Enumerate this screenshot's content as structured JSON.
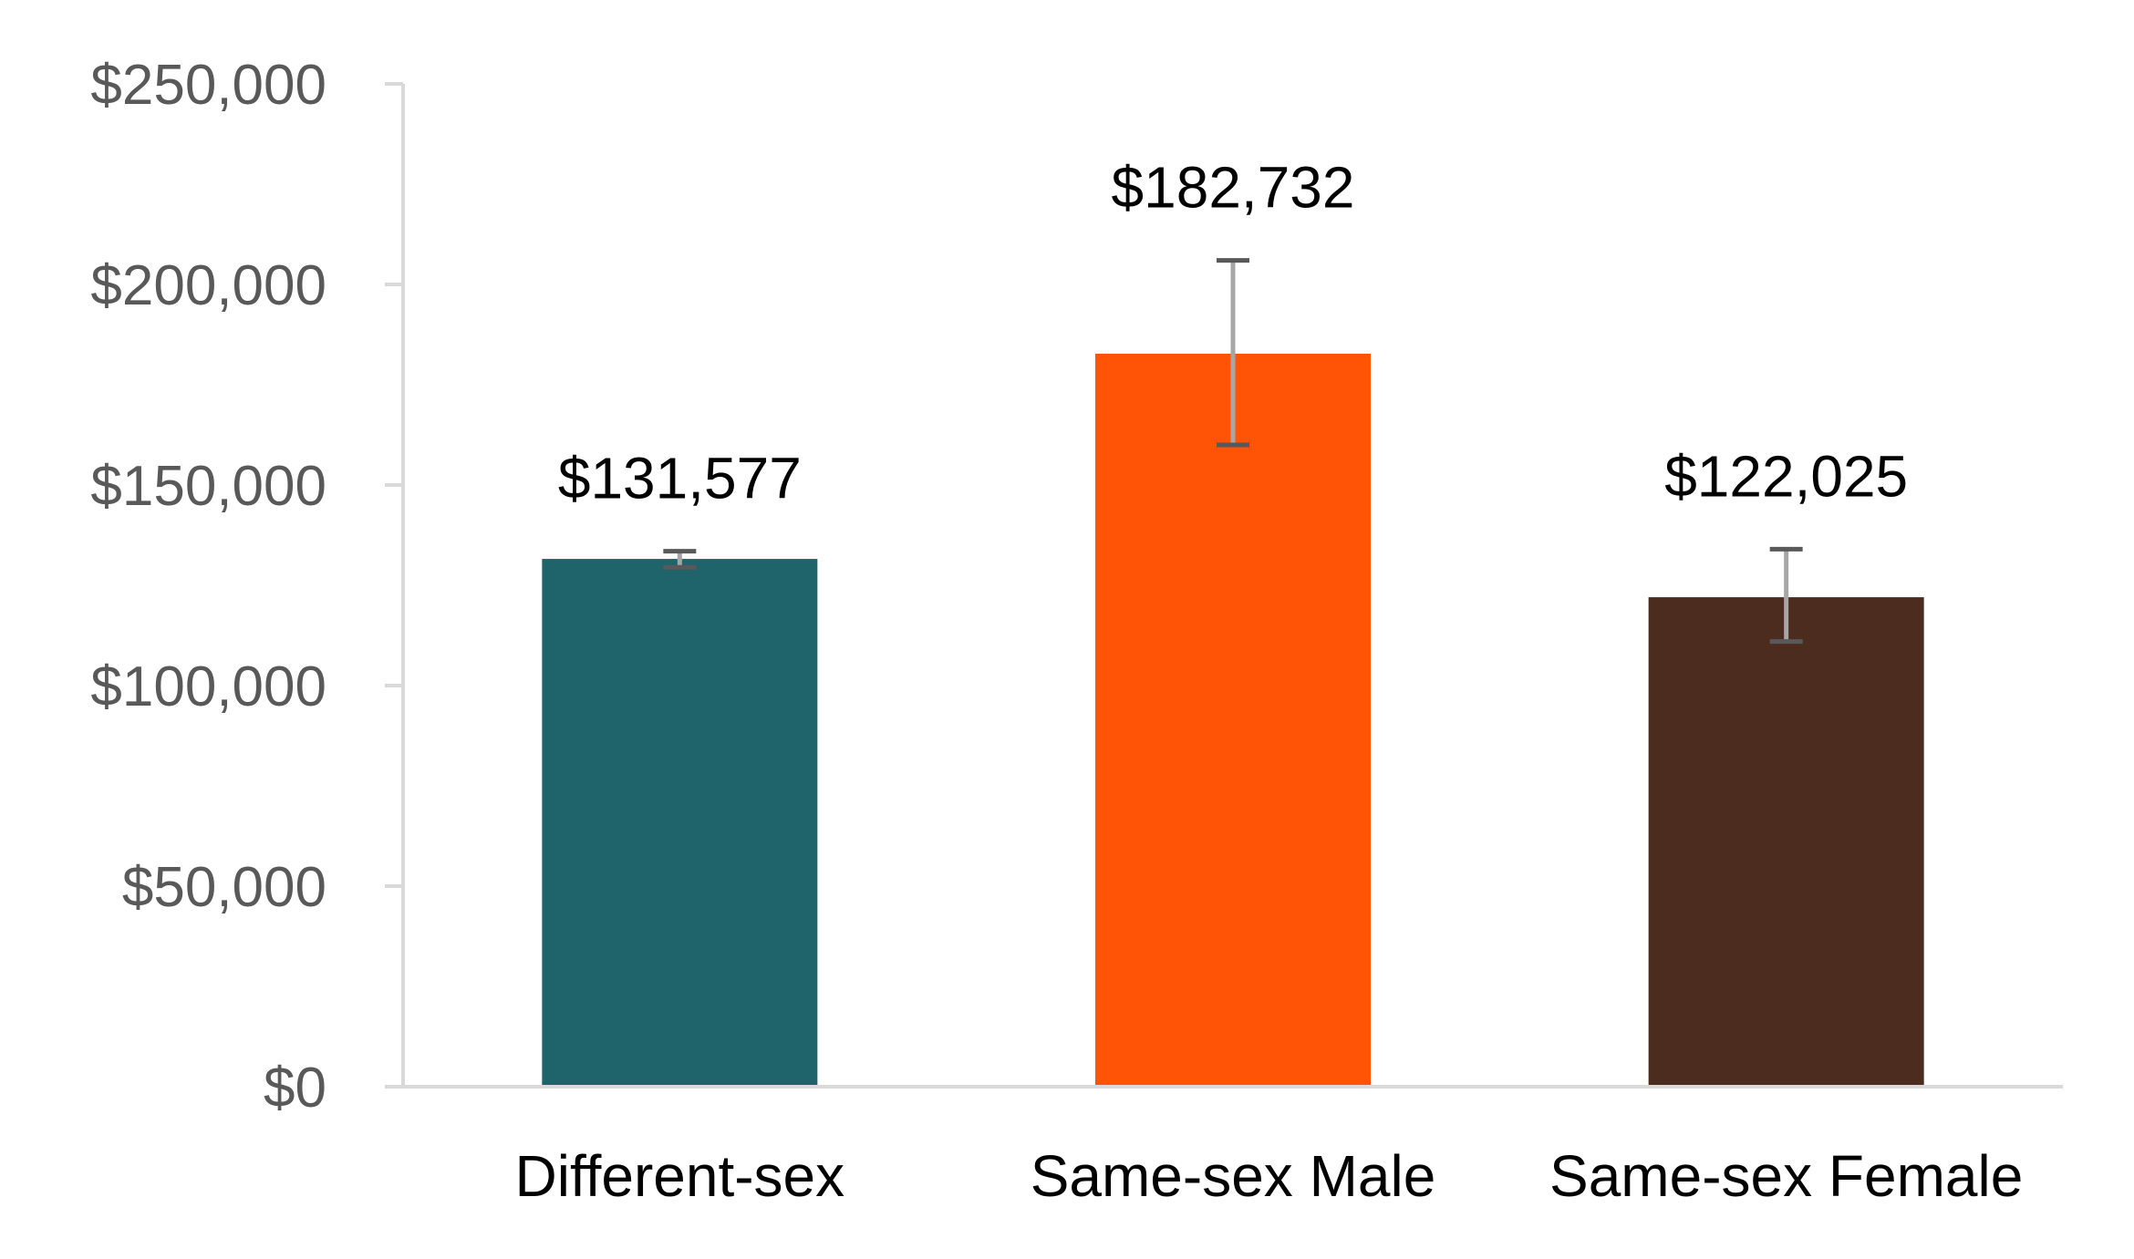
{
  "chart_data": {
    "type": "bar",
    "title": "",
    "xlabel": "",
    "ylabel": "",
    "categories": [
      "Different-sex",
      "Same-sex Male",
      "Same-sex Female"
    ],
    "values": [
      131577,
      182732,
      122025
    ],
    "value_labels": [
      "$131,577",
      "$182,732",
      "$122,025"
    ],
    "error_bars": [
      {
        "low": 129500,
        "high": 133500
      },
      {
        "low": 160000,
        "high": 206000
      },
      {
        "low": 111000,
        "high": 134000
      }
    ],
    "colors": [
      "#1F636B",
      "#FF5405",
      "#4D2C20"
    ],
    "ylim": [
      0,
      250000
    ],
    "y_ticks": [
      0,
      50000,
      100000,
      150000,
      200000,
      250000
    ],
    "y_tick_labels": [
      "$0",
      "$50,000",
      "$100,000",
      "$150,000",
      "$200,000",
      "$250,000"
    ],
    "grid": false,
    "legend": "none"
  }
}
